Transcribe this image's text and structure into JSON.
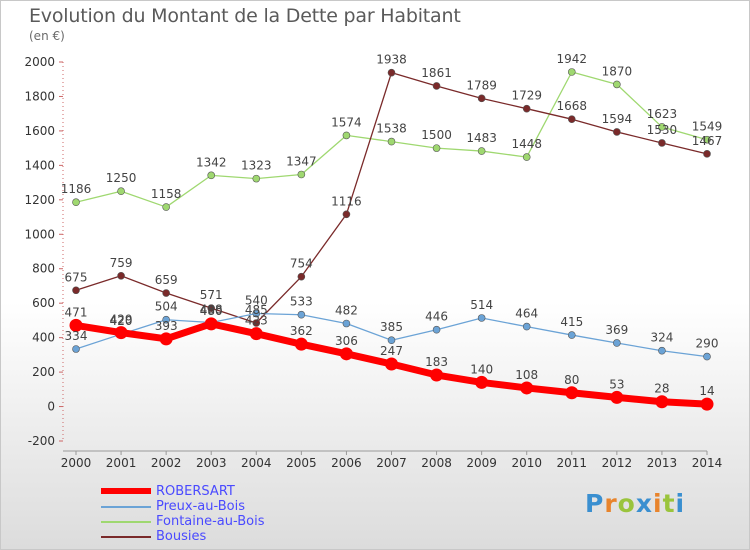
{
  "chart_data": {
    "type": "line",
    "title": "Evolution du Montant de la Dette par Habitant",
    "subtitle": "(en €)",
    "x": [
      "2000",
      "2001",
      "2002",
      "2003",
      "2004",
      "2005",
      "2006",
      "2007",
      "2008",
      "2009",
      "2010",
      "2011",
      "2012",
      "2013",
      "2014"
    ],
    "yticks": [
      "2000",
      "1800",
      "1600",
      "1400",
      "1200",
      "1000",
      "800",
      "600",
      "400",
      "200",
      "0",
      "-200"
    ],
    "ylim": [
      -200,
      2000
    ],
    "grid": false,
    "legend_position": "bottom-left",
    "series": [
      {
        "name": "ROBERSART",
        "color": "#ff0000",
        "values": [
          471,
          429,
          393,
          480,
          423,
          362,
          306,
          247,
          183,
          140,
          108,
          80,
          53,
          28,
          14
        ],
        "labels": [
          "471",
          "429",
          "393",
          "480",
          "423",
          "362",
          "306",
          "247",
          "183",
          "140",
          "108",
          "80",
          "53",
          "28",
          "14"
        ]
      },
      {
        "name": "Preux-au-Bois",
        "color": "#6ba3d6",
        "values": [
          334,
          420,
          504,
          488,
          540,
          533,
          482,
          385,
          446,
          514,
          464,
          415,
          369,
          324,
          290
        ],
        "labels": [
          "334",
          "420",
          "504",
          "488",
          "540",
          "533",
          "482",
          "385",
          "446",
          "514",
          "464",
          "415",
          "369",
          "324",
          "290"
        ]
      },
      {
        "name": "Fontaine-au-Bois",
        "color": "#9fd870",
        "values": [
          1186,
          1250,
          1158,
          1342,
          1323,
          1347,
          1574,
          1538,
          1500,
          1483,
          1448,
          1942,
          1870,
          1623,
          1549
        ],
        "labels": [
          "1186",
          "1250",
          "1158",
          "1342",
          "1323",
          "1347",
          "1574",
          "1538",
          "1500",
          "1483",
          "1448",
          "1942",
          "1870",
          "1623",
          "1549"
        ]
      },
      {
        "name": "Bousies",
        "color": "#7a2a2a",
        "values": [
          675,
          759,
          659,
          571,
          485,
          754,
          1116,
          1938,
          1861,
          1789,
          1729,
          1668,
          1594,
          1530,
          1467
        ],
        "labels": [
          "675",
          "759",
          "659",
          "571",
          "485",
          "754",
          "1116",
          "1938",
          "1861",
          "1789",
          "1729",
          "1668",
          "1594",
          "1530",
          "1467"
        ]
      }
    ]
  },
  "legend": {
    "text_color": "#4a4aff",
    "items": [
      "ROBERSART",
      "Preux-au-Bois",
      "Fontaine-au-Bois",
      "Bousies"
    ]
  },
  "logo": {
    "letters": [
      "P",
      "r",
      "o",
      "x",
      "i",
      "t",
      "i"
    ]
  }
}
